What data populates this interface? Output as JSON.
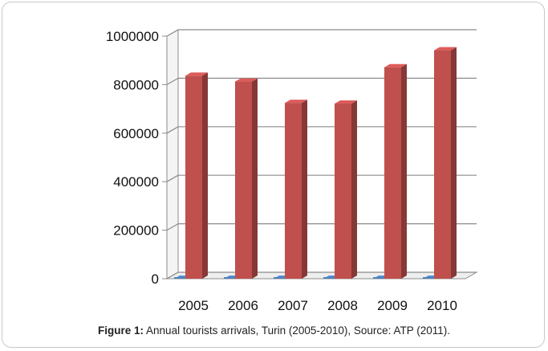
{
  "chart_data": {
    "type": "bar",
    "categories": [
      "2005",
      "2006",
      "2007",
      "2008",
      "2009",
      "2010"
    ],
    "series": [
      {
        "values": [
          5000,
          5000,
          5000,
          5000,
          5000,
          5000
        ],
        "color": "#4f81bd"
      },
      {
        "values": [
          850000,
          826000,
          738000,
          735000,
          885000,
          955000
        ],
        "color": "#c0504d"
      }
    ],
    "yticks": [
      "0",
      "200000",
      "400000",
      "600000",
      "800000",
      "1000000"
    ],
    "ylim": [
      0,
      1000000
    ],
    "grid": true,
    "legend": "none",
    "style": "3d-column"
  },
  "caption": {
    "label": "Figure 1:",
    "text": " Annual tourists arrivals, Turin (2005-2010), Source: ATP (2011)."
  }
}
